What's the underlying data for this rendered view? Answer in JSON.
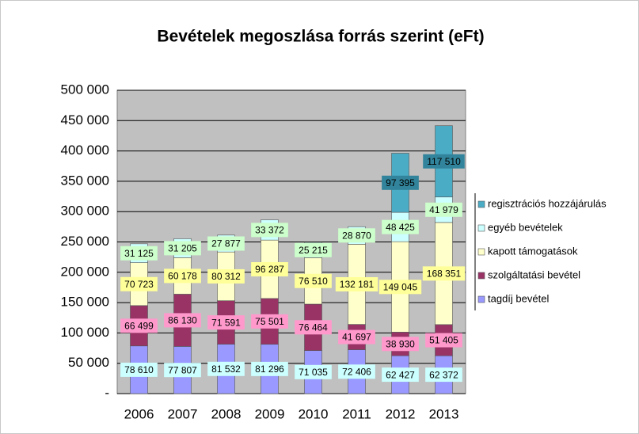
{
  "chart_data": {
    "type": "stacked_bar",
    "title": "Bevételek megoszlása forrás szerint (eFt)",
    "categories": [
      "2006",
      "2007",
      "2008",
      "2009",
      "2010",
      "2011",
      "2012",
      "2013"
    ],
    "series": [
      {
        "name": "tagdíj bevétel",
        "color": "#9999ff",
        "label_color": "#ccffff",
        "values": [
          78610,
          77807,
          81532,
          81296,
          71035,
          72406,
          62427,
          62372
        ],
        "value_labels": [
          "78 610",
          "77 807",
          "81 532",
          "81 296",
          "71 035",
          "72 406",
          "62 427",
          "62 372"
        ]
      },
      {
        "name": "szolgáltatási bevétel",
        "color": "#993366",
        "label_color": "#ff99cc",
        "values": [
          66499,
          86130,
          71591,
          75501,
          76464,
          41697,
          38930,
          51405
        ],
        "value_labels": [
          "66 499",
          "86 130",
          "71 591",
          "75 501",
          "76 464",
          "41 697",
          "38 930",
          "51 405"
        ]
      },
      {
        "name": "kapott támogatások",
        "color": "#ffffcc",
        "label_color": "#ffff99",
        "values": [
          70723,
          60178,
          80312,
          96287,
          76510,
          132181,
          149045,
          168351
        ],
        "value_labels": [
          "70 723",
          "60 178",
          "80 312",
          "96 287",
          "76 510",
          "132 181",
          "149 045",
          "168 351"
        ]
      },
      {
        "name": "egyéb bevételek",
        "color": "#ccffff",
        "label_color": "#ccffcc",
        "values": [
          31125,
          31205,
          27877,
          33372,
          25215,
          28870,
          48425,
          41979
        ],
        "value_labels": [
          "31 125",
          "31 205",
          "27 877",
          "33 372",
          "25 215",
          "28 870",
          "48 425",
          "41 979"
        ]
      },
      {
        "name": "regisztrációs hozzájárulás",
        "color": "#4bacc6",
        "label_color": "#31849b",
        "values": [
          null,
          null,
          null,
          null,
          null,
          null,
          97395,
          117510
        ],
        "value_labels": [
          null,
          null,
          null,
          null,
          null,
          null,
          "97 395",
          "117 510"
        ]
      }
    ],
    "ylim": [
      0,
      500000
    ],
    "yticks": [
      {
        "value": 0,
        "label": "-"
      },
      {
        "value": 50000,
        "label": "50 000"
      },
      {
        "value": 100000,
        "label": "100 000"
      },
      {
        "value": 150000,
        "label": "150 000"
      },
      {
        "value": 200000,
        "label": "200 000"
      },
      {
        "value": 250000,
        "label": "250 000"
      },
      {
        "value": 300000,
        "label": "300 000"
      },
      {
        "value": 350000,
        "label": "350 000"
      },
      {
        "value": 400000,
        "label": "400 000"
      },
      {
        "value": 450000,
        "label": "450 000"
      },
      {
        "value": 500000,
        "label": "500 000"
      }
    ],
    "grid": true,
    "legend": "right"
  }
}
